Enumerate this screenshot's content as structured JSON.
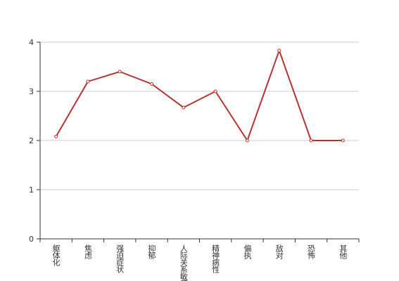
{
  "chart_data": {
    "type": "line",
    "categories": [
      "躯体化",
      "焦虑",
      "强迫症状",
      "抑郁",
      "人际关系敏感",
      "精神病性",
      "偏执",
      "敌对",
      "恐怖",
      "其他"
    ],
    "series": [
      {
        "name": null,
        "color": "#b83230",
        "values": [
          2.08,
          3.2,
          3.4,
          3.15,
          2.67,
          3.0,
          2.0,
          3.83,
          2.0,
          2.0
        ]
      }
    ],
    "ylim": [
      0,
      4
    ],
    "yticks": [
      0,
      1,
      2,
      3,
      4
    ],
    "grid": true
  }
}
